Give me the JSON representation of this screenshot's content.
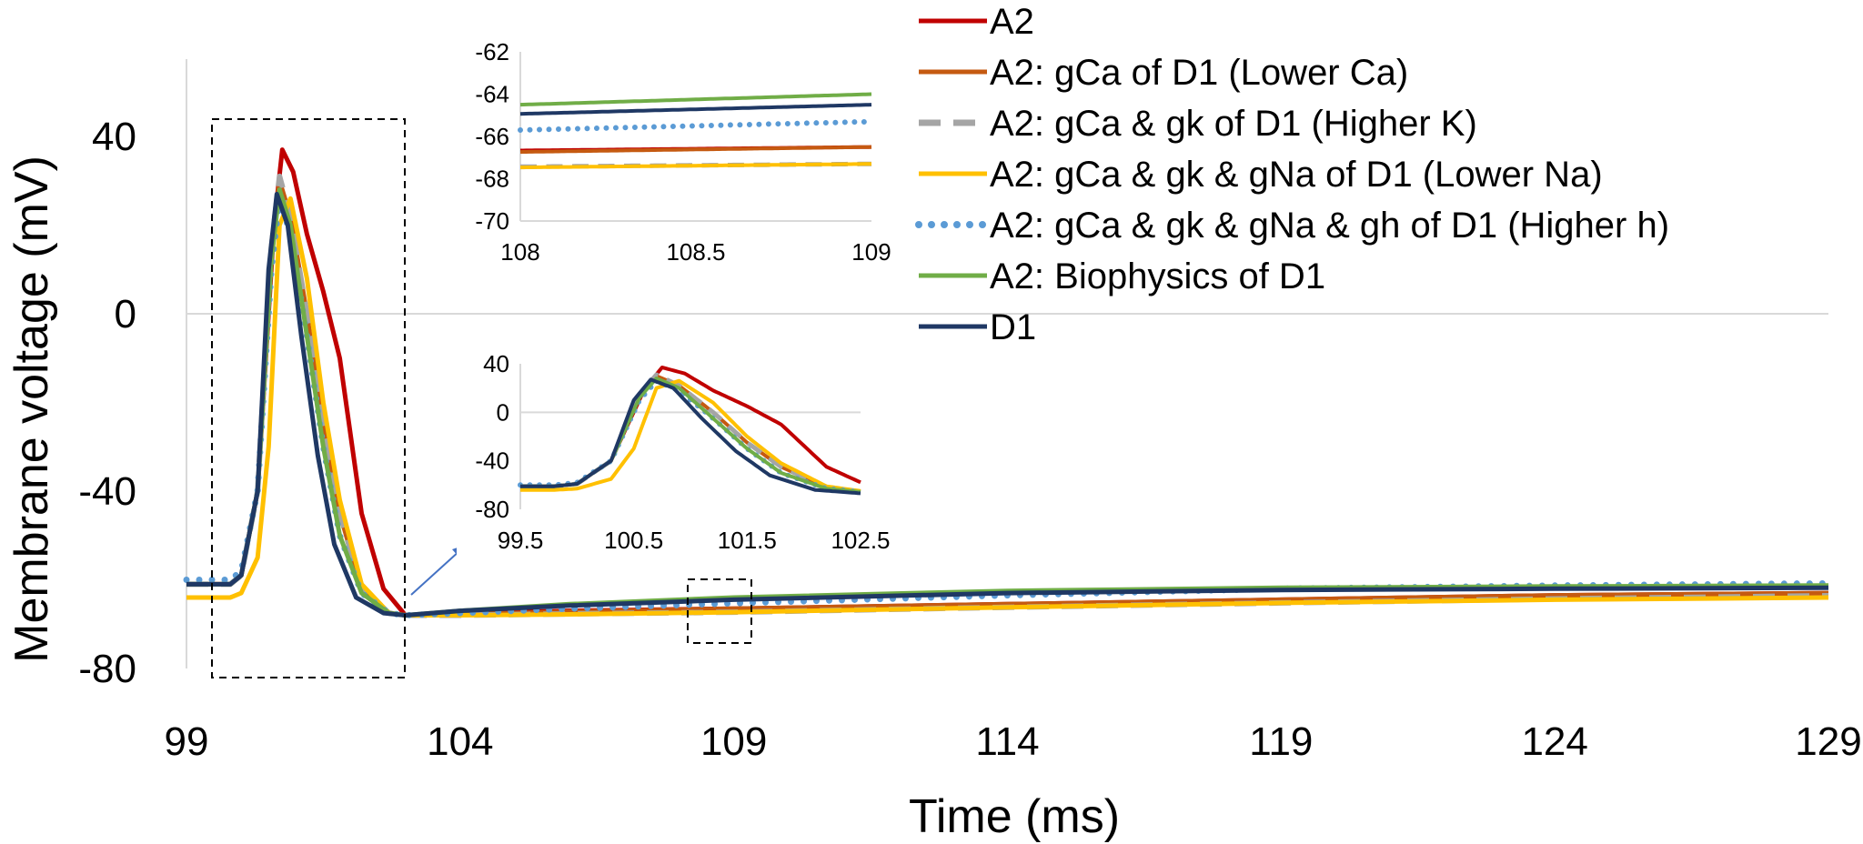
{
  "chart_data": {
    "type": "line",
    "xlabel": "Time (ms)",
    "ylabel": "Membrane voltage (mV)",
    "xlim": [
      99,
      129
    ],
    "ylim": [
      -80,
      60
    ],
    "xticks": [
      "99",
      "104",
      "109",
      "114",
      "119",
      "124",
      "129"
    ],
    "yticks": [
      "40",
      "0",
      "-40",
      "-80"
    ],
    "grid": false,
    "zero_line": true,
    "legend_position": "top-right",
    "series": [
      {
        "name": "A2",
        "color": "#c00000",
        "style": "solid",
        "x": [
          99,
          99.8,
          100.0,
          100.3,
          100.6,
          100.75,
          100.95,
          101.2,
          101.5,
          101.8,
          102.2,
          102.6,
          103,
          104,
          106,
          109,
          114,
          119,
          124,
          129
        ],
        "y": [
          -61,
          -61,
          -59,
          -40,
          20,
          37,
          32,
          18,
          5,
          -10,
          -45,
          -62,
          -68,
          -67.5,
          -67,
          -66.5,
          -65.5,
          -64.5,
          -63.5,
          -63
        ]
      },
      {
        "name": "A2: gCa of D1 (Lower Ca)",
        "color": "#c55a11",
        "style": "solid",
        "x": [
          99,
          99.8,
          100.0,
          100.3,
          100.55,
          100.7,
          100.9,
          101.2,
          101.5,
          101.8,
          102.2,
          102.7,
          103,
          104,
          106,
          109,
          114,
          119,
          124,
          129
        ],
        "y": [
          -61,
          -61,
          -59,
          -40,
          15,
          30,
          22,
          0,
          -25,
          -45,
          -62,
          -67.5,
          -68,
          -67.8,
          -67.2,
          -66.5,
          -65.5,
          -64.5,
          -63.5,
          -63
        ]
      },
      {
        "name": "A2: gCa & gk of D1 (Higher K)",
        "color": "#a5a5a5",
        "style": "dashed",
        "x": [
          99,
          99.8,
          100.0,
          100.3,
          100.55,
          100.7,
          100.9,
          101.2,
          101.5,
          101.8,
          102.2,
          102.7,
          103,
          104,
          106,
          109,
          114,
          119,
          124,
          129
        ],
        "y": [
          -61,
          -61,
          -59,
          -40,
          15,
          31,
          22,
          0,
          -25,
          -45,
          -62,
          -67.5,
          -68,
          -68,
          -67.7,
          -67.3,
          -66.2,
          -65.2,
          -64.3,
          -63.6
        ]
      },
      {
        "name": "A2: gCa & gk & gNa of D1 (Lower Na)",
        "color": "#ffc000",
        "style": "solid",
        "x": [
          99,
          99.8,
          100.0,
          100.3,
          100.5,
          100.7,
          100.9,
          101.2,
          101.5,
          101.8,
          102.2,
          102.7,
          103,
          104,
          106,
          109,
          114,
          119,
          124,
          129
        ],
        "y": [
          -64,
          -64,
          -63,
          -55,
          -30,
          20,
          26,
          8,
          -20,
          -42,
          -61,
          -67.5,
          -68,
          -68,
          -67.8,
          -67.3,
          -66.2,
          -65.2,
          -64.5,
          -64
        ]
      },
      {
        "name": "A2: gCa & gk & gNa & gh of D1 (Higher h)",
        "color": "#5b9bd5",
        "style": "dotted",
        "x": [
          99,
          99.8,
          100.0,
          100.3,
          100.55,
          100.7,
          100.9,
          101.2,
          101.5,
          101.8,
          102.2,
          102.7,
          103,
          104,
          106,
          109,
          114,
          119,
          124,
          129
        ],
        "y": [
          -60,
          -60,
          -58,
          -40,
          10,
          26,
          18,
          -5,
          -30,
          -50,
          -63,
          -67.5,
          -68,
          -67.5,
          -66.5,
          -65.3,
          -63.5,
          -62,
          -61.3,
          -60.8
        ]
      },
      {
        "name": "A2: Biophysics of D1",
        "color": "#70ad47",
        "style": "solid",
        "x": [
          99,
          99.8,
          100.0,
          100.3,
          100.55,
          100.7,
          100.9,
          101.2,
          101.5,
          101.8,
          102.2,
          102.7,
          103,
          104,
          106,
          109,
          114,
          119,
          124,
          129
        ],
        "y": [
          -61,
          -61,
          -59,
          -40,
          12,
          28,
          20,
          -5,
          -30,
          -50,
          -63,
          -67.5,
          -68,
          -67,
          -65.5,
          -64,
          -62.5,
          -61.8,
          -61.5,
          -61.3
        ]
      },
      {
        "name": "D1",
        "color": "#1f3864",
        "style": "solid",
        "x": [
          99,
          99.8,
          100.0,
          100.3,
          100.5,
          100.65,
          100.85,
          101.1,
          101.4,
          101.7,
          102.1,
          102.6,
          103,
          104,
          106,
          109,
          114,
          119,
          124,
          129
        ],
        "y": [
          -61,
          -61,
          -59,
          -40,
          10,
          27,
          20,
          -5,
          -32,
          -52,
          -64,
          -67.5,
          -68,
          -67,
          -65.8,
          -64.5,
          -63,
          -62.3,
          -62,
          -61.8
        ]
      }
    ],
    "insets": [
      {
        "name": "zoom-repolarization",
        "xlim": [
          108,
          109
        ],
        "ylim": [
          -70,
          -62
        ],
        "xticks": [
          "108",
          "108.5",
          "109"
        ],
        "yticks": [
          "-62",
          "-64",
          "-66",
          "-68",
          "-70"
        ]
      },
      {
        "name": "zoom-spike",
        "xlim": [
          99.5,
          102.5
        ],
        "ylim": [
          -80,
          40
        ],
        "xticks": [
          "99.5",
          "100.5",
          "101.5",
          "102.5"
        ],
        "yticks": [
          "40",
          "0",
          "-40",
          "-80"
        ]
      }
    ]
  }
}
